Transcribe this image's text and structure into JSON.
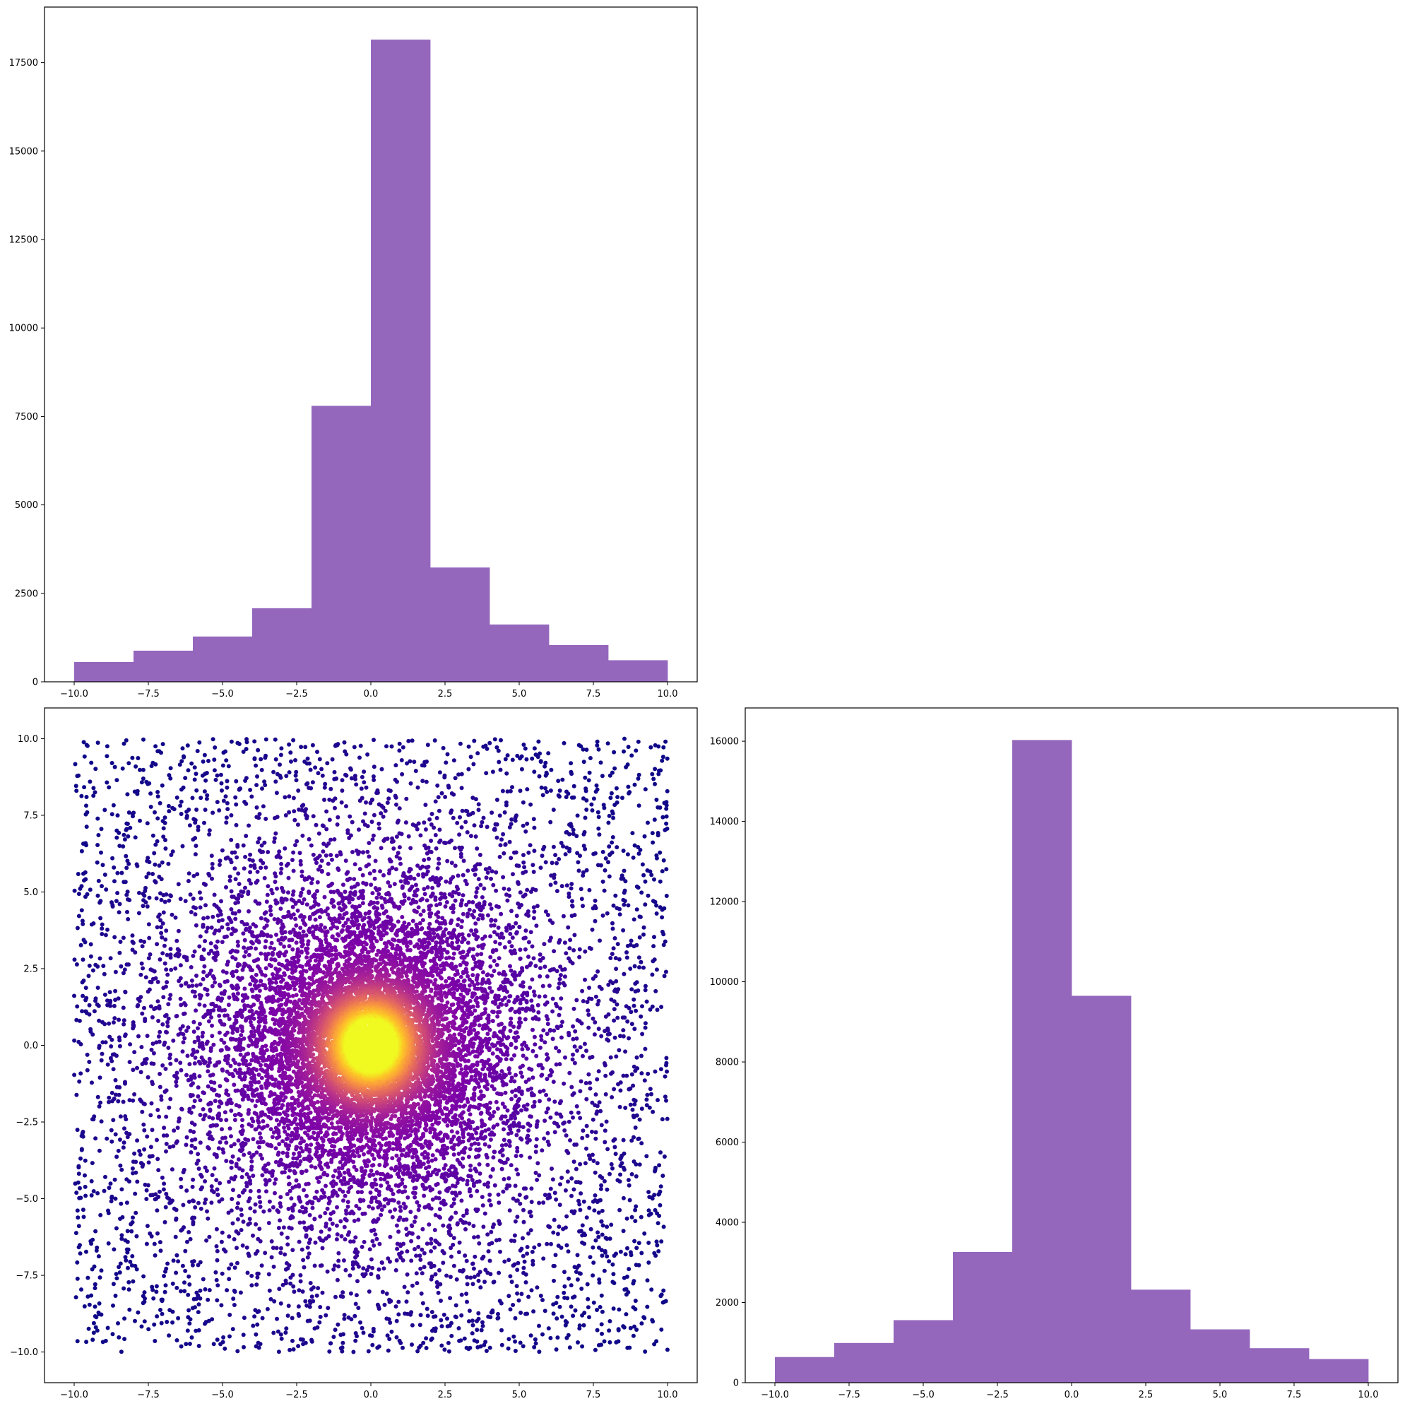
{
  "colors": {
    "bar_fill": "#9467bd",
    "axes_edge": "#000000",
    "colormap": "plasma"
  },
  "chart_data": [
    {
      "id": "top-left-histogram",
      "type": "bar",
      "position": "top-left",
      "bin_edges": [
        -10,
        -8,
        -6,
        -4,
        -2,
        0,
        2,
        4,
        6,
        8,
        10
      ],
      "values": [
        560,
        880,
        1280,
        2080,
        7800,
        18150,
        3230,
        1620,
        1040,
        610
      ],
      "xlim": [
        -11,
        11
      ],
      "ylim": [
        0,
        19070
      ],
      "xticks": [
        -10.0,
        -7.5,
        -5.0,
        -2.5,
        0.0,
        2.5,
        5.0,
        7.5,
        10.0
      ],
      "xtick_labels": [
        "−10.0",
        "−7.5",
        "−5.0",
        "−2.5",
        "0.0",
        "2.5",
        "5.0",
        "7.5",
        "10.0"
      ],
      "yticks": [
        0,
        2500,
        5000,
        7500,
        10000,
        12500,
        15000,
        17500
      ],
      "ytick_labels": [
        "0",
        "2500",
        "5000",
        "7500",
        "10000",
        "12500",
        "15000",
        "17500"
      ],
      "grid": false
    },
    {
      "id": "bottom-left-scatter",
      "type": "scatter",
      "position": "bottom-left",
      "x_range": [
        -10,
        10
      ],
      "y_range": [
        -10,
        10
      ],
      "color_by": "point density (plasma colormap, dense center = yellow)",
      "density_peak": [
        0,
        0
      ],
      "xlim": [
        -11,
        11
      ],
      "ylim": [
        -11,
        11
      ],
      "xticks": [
        -10.0,
        -7.5,
        -5.0,
        -2.5,
        0.0,
        2.5,
        5.0,
        7.5,
        10.0
      ],
      "xtick_labels": [
        "−10.0",
        "−7.5",
        "−5.0",
        "−2.5",
        "0.0",
        "2.5",
        "5.0",
        "7.5",
        "10.0"
      ],
      "yticks": [
        -10.0,
        -7.5,
        -5.0,
        -2.5,
        0.0,
        2.5,
        5.0,
        7.5,
        10.0
      ],
      "ytick_labels": [
        "−10.0",
        "−7.5",
        "−5.0",
        "−2.5",
        "0.0",
        "2.5",
        "5.0",
        "7.5",
        "10.0"
      ],
      "grid": false
    },
    {
      "id": "bottom-right-histogram",
      "type": "bar",
      "position": "bottom-right",
      "bin_edges": [
        -10,
        -8,
        -6,
        -4,
        -2,
        0,
        2,
        4,
        6,
        8,
        10
      ],
      "values": [
        640,
        990,
        1560,
        3260,
        16030,
        9650,
        2320,
        1330,
        860,
        590
      ],
      "xlim": [
        -11,
        11
      ],
      "ylim": [
        0,
        16830
      ],
      "xticks": [
        -10.0,
        -7.5,
        -5.0,
        -2.5,
        0.0,
        2.5,
        5.0,
        7.5,
        10.0
      ],
      "xtick_labels": [
        "−10.0",
        "−7.5",
        "−5.0",
        "−2.5",
        "0.0",
        "2.5",
        "5.0",
        "7.5",
        "10.0"
      ],
      "yticks": [
        0,
        2000,
        4000,
        6000,
        8000,
        10000,
        12000,
        14000,
        16000
      ],
      "ytick_labels": [
        "0",
        "2000",
        "4000",
        "6000",
        "8000",
        "10000",
        "12000",
        "14000",
        "16000"
      ],
      "grid": false
    }
  ]
}
